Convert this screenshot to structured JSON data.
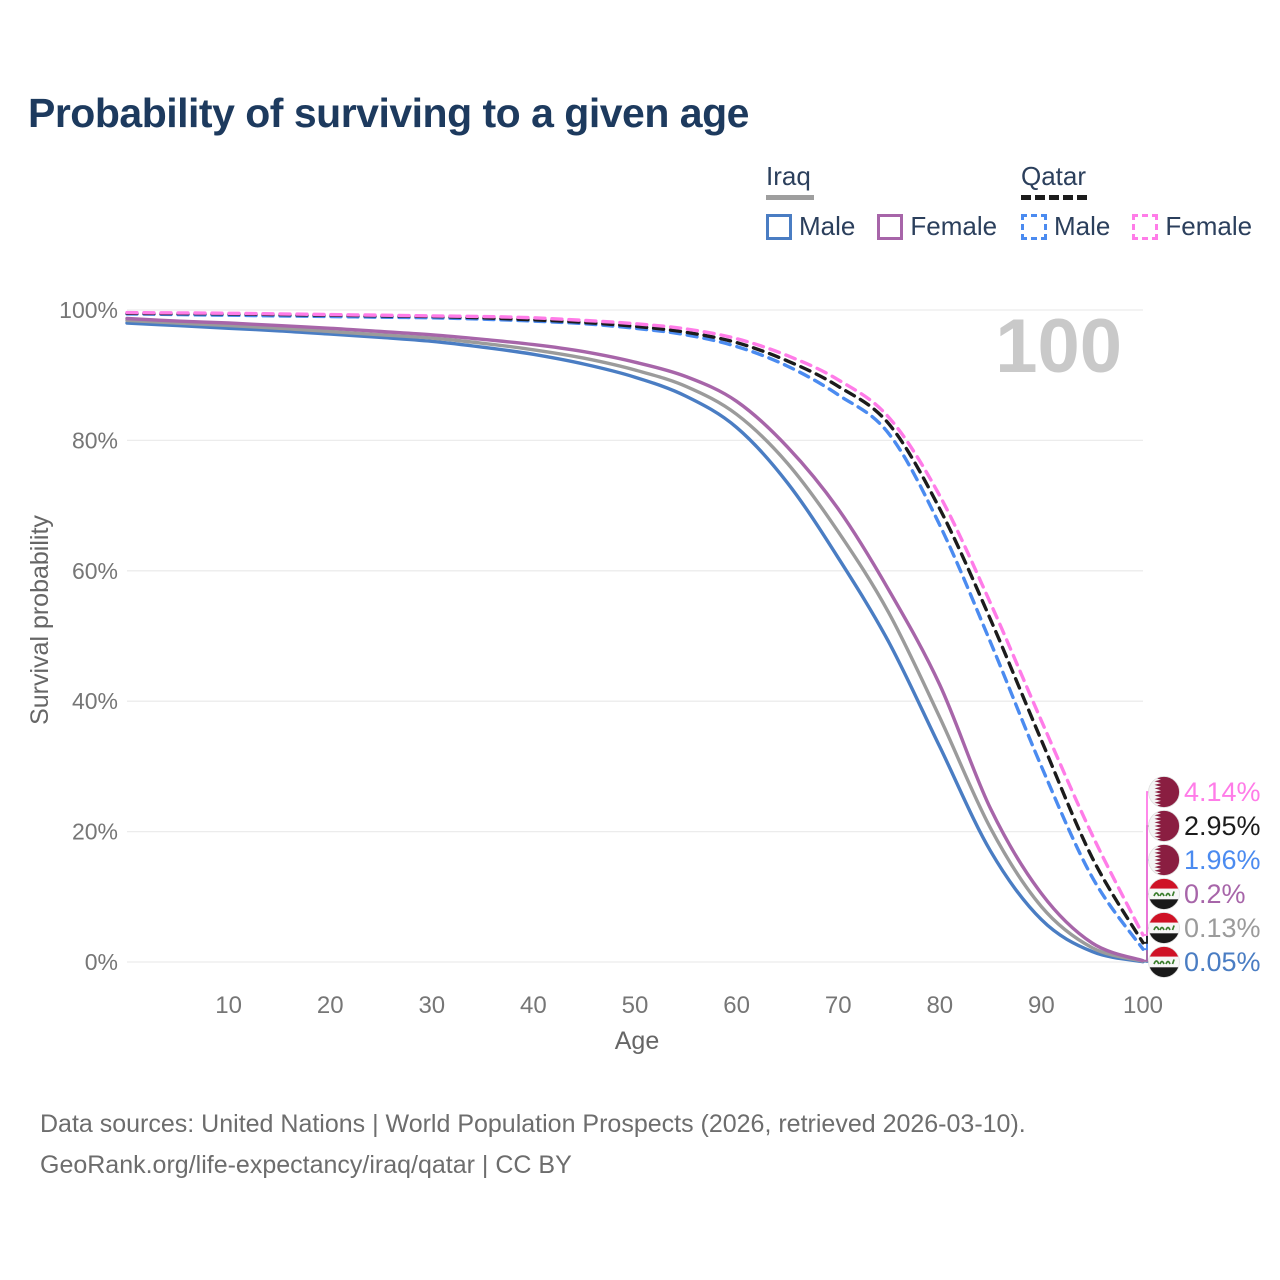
{
  "page": {
    "title": "Probability of surviving to a given age"
  },
  "legend": {
    "groups": [
      {
        "name": "Iraq",
        "line_style": "solid",
        "underline_color": "#9e9e9e",
        "items": [
          {
            "label": "Male",
            "color": "#4a7dc3"
          },
          {
            "label": "Female",
            "color": "#a765a9"
          }
        ]
      },
      {
        "name": "Qatar",
        "line_style": "dashed",
        "underline_color": "#1c1c1c",
        "items": [
          {
            "label": "Male",
            "color": "#4b8bf0"
          },
          {
            "label": "Female",
            "color": "#ff7ce8"
          }
        ]
      }
    ]
  },
  "chart_data": {
    "type": "line",
    "title": "Probability of surviving to a given age",
    "xlabel": "Age",
    "ylabel": "Survival probability",
    "xlim": [
      0,
      100
    ],
    "ylim": [
      0,
      100
    ],
    "grid": "horizontal",
    "x_ticks": [
      "10",
      "20",
      "30",
      "40",
      "50",
      "60",
      "70",
      "80",
      "90",
      "100"
    ],
    "y_ticks": [
      "0%",
      "20%",
      "40%",
      "60%",
      "80%",
      "100%"
    ],
    "annotation": "100",
    "x": [
      0,
      5,
      10,
      15,
      20,
      25,
      30,
      35,
      40,
      45,
      50,
      55,
      60,
      65,
      70,
      75,
      80,
      85,
      90,
      95,
      100
    ],
    "series": [
      {
        "name": "Iraq Male",
        "country": "Iraq",
        "sex": "Male",
        "style": "solid",
        "color": "#4a7dc3",
        "end_label": "0.05%",
        "end_value": 0.05,
        "values": [
          98.0,
          97.6,
          97.2,
          96.8,
          96.3,
          95.8,
          95.2,
          94.3,
          93.2,
          91.7,
          89.7,
          86.8,
          82.0,
          73.5,
          62.0,
          49.0,
          33.0,
          17.0,
          6.5,
          1.6,
          0.05
        ]
      },
      {
        "name": "Iraq Total",
        "country": "Iraq",
        "sex": "Both",
        "style": "solid",
        "color": "#9b9b9b",
        "end_label": "0.13%",
        "end_value": 0.13,
        "values": [
          98.4,
          98.0,
          97.6,
          97.2,
          96.7,
          96.2,
          95.7,
          94.9,
          93.9,
          92.6,
          90.8,
          88.3,
          84.0,
          76.5,
          66.0,
          53.5,
          37.5,
          20.5,
          8.5,
          2.2,
          0.13
        ]
      },
      {
        "name": "Iraq Female",
        "country": "Iraq",
        "sex": "Female",
        "style": "solid",
        "color": "#a765a9",
        "end_label": "0.2%",
        "end_value": 0.2,
        "values": [
          98.7,
          98.3,
          98.0,
          97.6,
          97.2,
          96.7,
          96.2,
          95.5,
          94.7,
          93.6,
          92.0,
          89.8,
          86.0,
          79.0,
          69.5,
          57.0,
          42.5,
          23.5,
          10.5,
          2.9,
          0.2
        ]
      },
      {
        "name": "Qatar Male",
        "country": "Qatar",
        "sex": "Male",
        "style": "dashed",
        "color": "#4b8bf0",
        "end_label": "1.96%",
        "end_value": 1.96,
        "values": [
          99.4,
          99.3,
          99.2,
          99.1,
          99.0,
          98.9,
          98.8,
          98.6,
          98.3,
          97.9,
          97.2,
          96.2,
          94.4,
          91.4,
          87.0,
          81.0,
          67.0,
          49.0,
          30.0,
          13.0,
          1.96
        ]
      },
      {
        "name": "Qatar Total",
        "country": "Qatar",
        "sex": "Both",
        "style": "dashed",
        "color": "#1c1c1c",
        "end_label": "2.95%",
        "end_value": 2.95,
        "values": [
          99.5,
          99.45,
          99.4,
          99.3,
          99.2,
          99.1,
          99.0,
          98.8,
          98.5,
          98.1,
          97.5,
          96.6,
          95.0,
          92.2,
          88.3,
          82.5,
          69.5,
          52.5,
          34.0,
          16.0,
          2.95
        ]
      },
      {
        "name": "Qatar Female",
        "country": "Qatar",
        "sex": "Female",
        "style": "dashed",
        "color": "#ff7ce8",
        "end_label": "4.14%",
        "end_value": 4.14,
        "values": [
          99.6,
          99.55,
          99.5,
          99.4,
          99.3,
          99.2,
          99.1,
          99.0,
          98.8,
          98.4,
          97.9,
          97.1,
          95.6,
          93.0,
          89.3,
          83.5,
          71.5,
          55.0,
          37.0,
          19.5,
          4.14
        ]
      }
    ]
  },
  "colors": {
    "title": "#1d3a5e",
    "grid": "#ececec",
    "tick_text": "#767676",
    "axis_label": "#666666",
    "watermark": "#c9c9c9",
    "qatar_flag_maroon": "#8a1e41",
    "iraq_flag_red": "#cf1226",
    "iraq_flag_green": "#3a7d2c"
  },
  "footer": {
    "line1": "Data sources: United Nations | World Population Prospects (2026, retrieved 2026-03-10).",
    "line2": "GeoRank.org/life-expectancy/iraq/qatar | CC BY"
  }
}
